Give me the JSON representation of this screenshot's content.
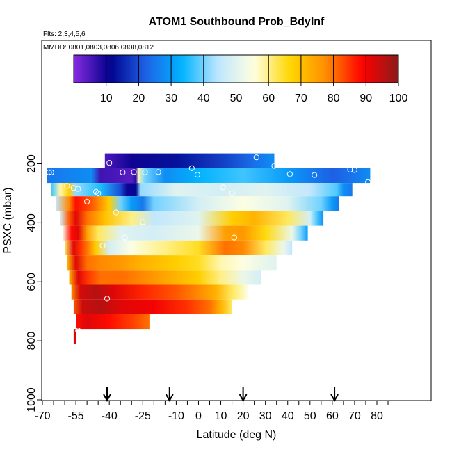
{
  "chart_data": {
    "type": "heatmap",
    "title": "ATOM1 Southbound Prob_BdyInf",
    "subtitle_flights": "Flts: 2,3,4,5,6",
    "subtitle_dates": "MMDD: 0801,0803,0806,0808,0812",
    "xlabel": "Latitude (deg N)",
    "ylabel": "PSXC (mbar)",
    "xlim": [
      -70,
      85
    ],
    "ylim": [
      1000,
      0
    ],
    "x_tick_labels": [
      "-70",
      "-55",
      "-40",
      "-25",
      "-10",
      "0",
      "10",
      "20",
      "30",
      "40",
      "50",
      "60",
      "70",
      "80"
    ],
    "x_tick_values": [
      -70,
      -55,
      -40,
      -25,
      -10,
      0,
      10,
      20,
      30,
      40,
      50,
      60,
      70,
      80
    ],
    "y_tick_labels": [
      "200",
      "400",
      "600",
      "800",
      "1000"
    ],
    "y_tick_values": [
      200,
      400,
      600,
      800,
      1000
    ],
    "colorbar": {
      "range": [
        0,
        100
      ],
      "tick_labels": [
        "10",
        "20",
        "30",
        "40",
        "50",
        "60",
        "70",
        "80",
        "90",
        "100"
      ],
      "tick_values": [
        10,
        20,
        30,
        40,
        50,
        60,
        70,
        80,
        90,
        100
      ],
      "colors": [
        "#8a2be2",
        "#00008b",
        "#1e62e6",
        "#00b4ff",
        "#bfe6ff",
        "#ffffe0",
        "#ffd700",
        "#ff8c00",
        "#ff0000",
        "#8b1a1a"
      ]
    },
    "arrow_latitudes": [
      -41,
      -13,
      20,
      61
    ],
    "rows": [
      {
        "p_top": 165,
        "p_bot": 215,
        "lat_start": -42,
        "lat_end": 34,
        "stops": [
          [
            -42,
            5
          ],
          [
            -30,
            10
          ],
          [
            -10,
            13
          ],
          [
            10,
            18
          ],
          [
            25,
            24
          ],
          [
            34,
            28
          ]
        ]
      },
      {
        "p_top": 215,
        "p_bot": 265,
        "lat_start": -68,
        "lat_end": 77,
        "stops": [
          [
            -68,
            25
          ],
          [
            -48,
            28
          ],
          [
            -44,
            6
          ],
          [
            -35,
            5
          ],
          [
            -30,
            4
          ],
          [
            -28,
            8
          ],
          [
            -27,
            58
          ],
          [
            -24,
            40
          ],
          [
            -15,
            28
          ],
          [
            0,
            33
          ],
          [
            20,
            37
          ],
          [
            40,
            30
          ],
          [
            60,
            22
          ],
          [
            70,
            25
          ],
          [
            77,
            28
          ]
        ]
      },
      {
        "p_top": 265,
        "p_bot": 310,
        "lat_start": -66,
        "lat_end": 69,
        "stops": [
          [
            -66,
            37
          ],
          [
            -62,
            58
          ],
          [
            -58,
            68
          ],
          [
            -55,
            42
          ],
          [
            -44,
            35
          ],
          [
            -35,
            20
          ],
          [
            -32,
            10
          ],
          [
            -28,
            12
          ],
          [
            -26,
            42
          ],
          [
            -10,
            50
          ],
          [
            10,
            48
          ],
          [
            30,
            50
          ],
          [
            50,
            45
          ],
          [
            62,
            38
          ],
          [
            65,
            28
          ],
          [
            69,
            25
          ]
        ]
      },
      {
        "p_top": 310,
        "p_bot": 360,
        "lat_start": -64,
        "lat_end": 63,
        "stops": [
          [
            -64,
            45
          ],
          [
            -58,
            78
          ],
          [
            -55,
            88
          ],
          [
            -48,
            82
          ],
          [
            -40,
            68
          ],
          [
            -35,
            40
          ],
          [
            -30,
            30
          ],
          [
            -25,
            25
          ],
          [
            -20,
            40
          ],
          [
            0,
            48
          ],
          [
            20,
            55
          ],
          [
            40,
            50
          ],
          [
            55,
            40
          ],
          [
            60,
            30
          ],
          [
            63,
            25
          ]
        ]
      },
      {
        "p_top": 360,
        "p_bot": 410,
        "lat_start": -62,
        "lat_end": 56,
        "stops": [
          [
            -62,
            48
          ],
          [
            -58,
            82
          ],
          [
            -55,
            92
          ],
          [
            -50,
            80
          ],
          [
            -42,
            70
          ],
          [
            -30,
            60
          ],
          [
            -20,
            45
          ],
          [
            0,
            50
          ],
          [
            15,
            68
          ],
          [
            25,
            72
          ],
          [
            40,
            62
          ],
          [
            50,
            48
          ],
          [
            53,
            38
          ],
          [
            56,
            28
          ]
        ]
      },
      {
        "p_top": 410,
        "p_bot": 460,
        "lat_start": -61,
        "lat_end": 49,
        "stops": [
          [
            -61,
            55
          ],
          [
            -57,
            88
          ],
          [
            -54,
            92
          ],
          [
            -50,
            75
          ],
          [
            -45,
            62
          ],
          [
            -35,
            50
          ],
          [
            -20,
            48
          ],
          [
            0,
            52
          ],
          [
            12,
            75
          ],
          [
            20,
            76
          ],
          [
            30,
            66
          ],
          [
            42,
            52
          ],
          [
            46,
            40
          ],
          [
            49,
            30
          ]
        ]
      },
      {
        "p_top": 460,
        "p_bot": 510,
        "lat_start": -60,
        "lat_end": 42,
        "stops": [
          [
            -60,
            62
          ],
          [
            -56,
            92
          ],
          [
            -53,
            85
          ],
          [
            -46,
            68
          ],
          [
            -40,
            48
          ],
          [
            -30,
            55
          ],
          [
            -15,
            60
          ],
          [
            0,
            65
          ],
          [
            12,
            80
          ],
          [
            20,
            78
          ],
          [
            30,
            62
          ],
          [
            38,
            52
          ],
          [
            42,
            45
          ]
        ]
      },
      {
        "p_top": 510,
        "p_bot": 560,
        "lat_start": -59,
        "lat_end": 35,
        "stops": [
          [
            -59,
            70
          ],
          [
            -55,
            92
          ],
          [
            -50,
            80
          ],
          [
            -44,
            78
          ],
          [
            -35,
            76
          ],
          [
            -25,
            72
          ],
          [
            -10,
            68
          ],
          [
            0,
            65
          ],
          [
            10,
            58
          ],
          [
            20,
            55
          ],
          [
            28,
            52
          ],
          [
            35,
            50
          ]
        ]
      },
      {
        "p_top": 560,
        "p_bot": 610,
        "lat_start": -58,
        "lat_end": 28,
        "stops": [
          [
            -58,
            72
          ],
          [
            -54,
            92
          ],
          [
            -50,
            85
          ],
          [
            -44,
            80
          ],
          [
            -34,
            80
          ],
          [
            -20,
            76
          ],
          [
            -10,
            72
          ],
          [
            0,
            68
          ],
          [
            10,
            60
          ],
          [
            20,
            52
          ],
          [
            28,
            48
          ]
        ]
      },
      {
        "p_top": 610,
        "p_bot": 660,
        "lat_start": -57,
        "lat_end": 22,
        "stops": [
          [
            -57,
            78
          ],
          [
            -53,
            93
          ],
          [
            -46,
            96
          ],
          [
            -38,
            92
          ],
          [
            -25,
            86
          ],
          [
            -10,
            82
          ],
          [
            0,
            78
          ],
          [
            8,
            72
          ],
          [
            15,
            62
          ],
          [
            22,
            55
          ]
        ]
      },
      {
        "p_top": 660,
        "p_bot": 710,
        "lat_start": -56,
        "lat_end": 15,
        "stops": [
          [
            -56,
            82
          ],
          [
            -52,
            94
          ],
          [
            -44,
            96
          ],
          [
            -35,
            92
          ],
          [
            -20,
            90
          ],
          [
            -5,
            85
          ],
          [
            5,
            80
          ],
          [
            10,
            72
          ],
          [
            15,
            62
          ]
        ]
      },
      {
        "p_top": 710,
        "p_bot": 760,
        "lat_start": -55,
        "lat_end": -22,
        "stops": [
          [
            -55,
            88
          ],
          [
            -50,
            92
          ],
          [
            -40,
            88
          ],
          [
            -30,
            84
          ],
          [
            -22,
            80
          ]
        ]
      },
      {
        "p_top": 760,
        "p_bot": 810,
        "lat_start": -56,
        "lat_end": -55,
        "stops": [
          [
            -56,
            92
          ],
          [
            -55,
            92
          ]
        ]
      }
    ],
    "points": [
      [
        -40,
        197
      ],
      [
        -34,
        229
      ],
      [
        -29,
        228
      ],
      [
        -24,
        229
      ],
      [
        -18,
        228
      ],
      [
        -3,
        215
      ],
      [
        -0.5,
        237
      ],
      [
        11,
        280
      ],
      [
        15,
        300
      ],
      [
        26,
        178
      ],
      [
        34,
        207
      ],
      [
        41,
        235
      ],
      [
        52,
        238
      ],
      [
        68,
        220
      ],
      [
        70,
        221
      ],
      [
        76,
        262
      ],
      [
        -66,
        229
      ],
      [
        -67,
        229
      ],
      [
        -59,
        275
      ],
      [
        -56,
        282
      ],
      [
        -54,
        285
      ],
      [
        -46,
        295
      ],
      [
        -45,
        300
      ],
      [
        -50,
        328
      ],
      [
        -37,
        365
      ],
      [
        -25,
        398
      ],
      [
        -43,
        477
      ],
      [
        -33,
        450
      ],
      [
        16,
        450
      ],
      [
        -54,
        765
      ],
      [
        -41,
        657
      ],
      [
        16,
        675
      ]
    ]
  }
}
